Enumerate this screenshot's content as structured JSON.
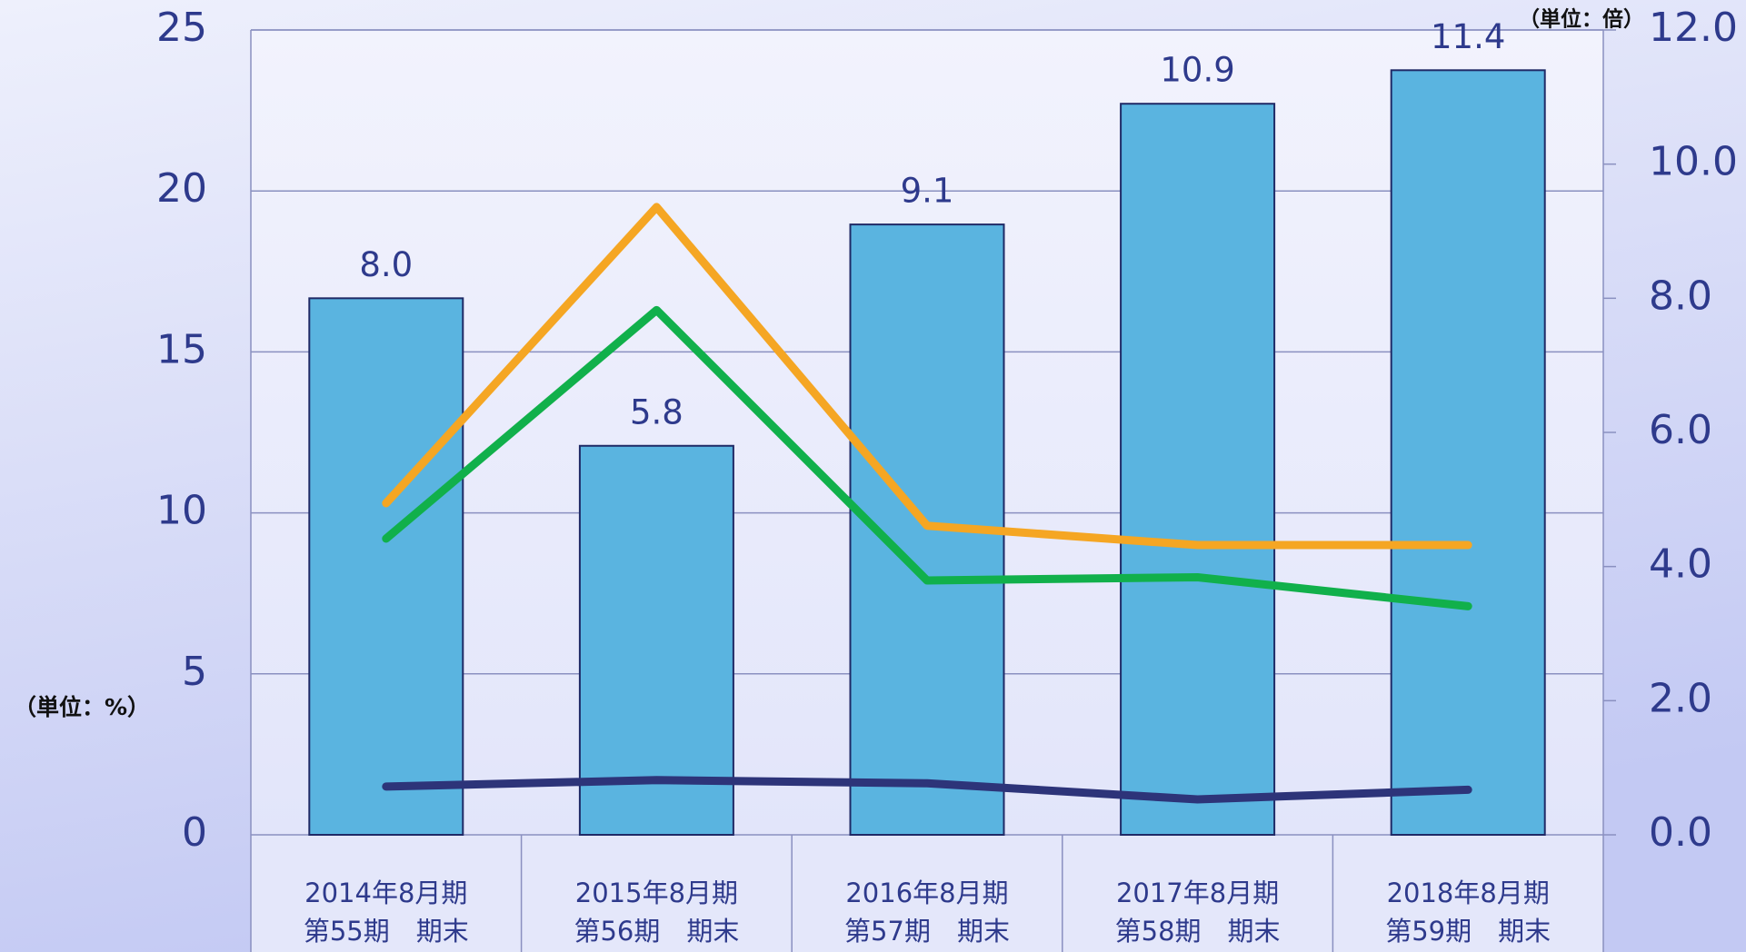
{
  "chart_data": {
    "type": "bar_line",
    "categories": [
      [
        "2014年8月期",
        "第55期　期末"
      ],
      [
        "2015年8月期",
        "第56期　期末"
      ],
      [
        "2016年8月期",
        "第57期　期末"
      ],
      [
        "2017年8月期",
        "第58期　期末"
      ],
      [
        "2018年8月期",
        "第59期　期末"
      ]
    ],
    "series": [
      {
        "type": "bar",
        "axis": "y2",
        "color": "#5ab4e0",
        "values": [
          8.0,
          5.8,
          9.1,
          10.9,
          11.4
        ],
        "value_labels": [
          "8.0",
          "5.8",
          "9.1",
          "10.9",
          "11.4"
        ]
      },
      {
        "type": "line",
        "axis": "y",
        "color": "#f5a623",
        "values": [
          10.3,
          19.5,
          9.6,
          9.0,
          9.0
        ]
      },
      {
        "type": "line",
        "axis": "y",
        "color": "#11b04b",
        "values": [
          9.2,
          16.3,
          7.9,
          8.0,
          7.1
        ]
      },
      {
        "type": "line",
        "axis": "y",
        "color": "#2d3479",
        "values": [
          1.5,
          1.7,
          1.6,
          1.1,
          1.4
        ]
      }
    ],
    "ylim": [
      0,
      25
    ],
    "yticks": [
      0,
      5,
      10,
      15,
      20,
      25
    ],
    "y2lim": [
      0,
      12
    ],
    "y2ticks": [
      {
        "value": 0,
        "label": "0.0"
      },
      {
        "value": 2,
        "label": "2.0"
      },
      {
        "value": 4,
        "label": "4.0"
      },
      {
        "value": 6,
        "label": "6.0"
      },
      {
        "value": 8,
        "label": "8.0"
      },
      {
        "value": 10,
        "label": "10.0"
      },
      {
        "value": 12,
        "label": "12.0"
      }
    ],
    "ylabel": "（単位：%）",
    "y2label": "（単位：倍）",
    "grid": true
  }
}
